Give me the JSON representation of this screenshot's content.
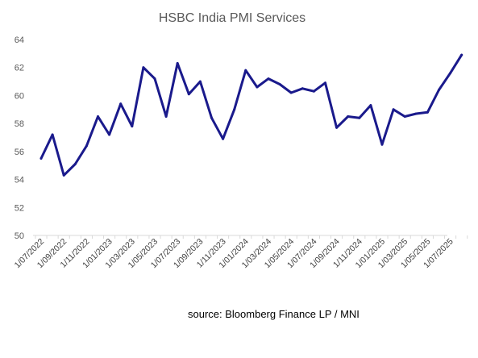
{
  "chart_data": {
    "type": "line",
    "title": "HSBC India PMI Services",
    "xlabel": "",
    "ylabel": "",
    "ylim": [
      50,
      64
    ],
    "yticks": [
      "50",
      "52",
      "54",
      "56",
      "58",
      "60",
      "62",
      "64"
    ],
    "xtick_labels": [
      "1/07/2022",
      "1/09/2022",
      "1/11/2022",
      "1/01/2023",
      "1/03/2023",
      "1/05/2023",
      "1/07/2023",
      "1/09/2023",
      "1/11/2023",
      "1/01/2024",
      "1/03/2024",
      "1/05/2024",
      "1/07/2024",
      "1/09/2024",
      "1/11/2024",
      "1/01/2025",
      "1/03/2025",
      "1/05/2025",
      "1/07/2025"
    ],
    "grid": false,
    "line_color": "#1a1a8c",
    "series": [
      {
        "x": [
          "2022-07",
          "2022-08",
          "2022-09",
          "2022-10",
          "2022-11",
          "2022-12",
          "2023-01",
          "2023-02",
          "2023-03",
          "2023-04",
          "2023-05",
          "2023-06",
          "2023-07",
          "2023-08",
          "2023-09",
          "2023-10",
          "2023-11",
          "2023-12",
          "2024-01",
          "2024-02",
          "2024-03",
          "2024-04",
          "2024-05",
          "2024-06",
          "2024-07",
          "2024-08",
          "2024-09",
          "2024-10",
          "2024-11",
          "2024-12",
          "2025-01",
          "2025-02",
          "2025-03",
          "2025-04",
          "2025-05",
          "2025-06",
          "2025-07",
          "2025-08"
        ],
        "values": [
          55.5,
          57.2,
          54.3,
          55.1,
          56.4,
          58.5,
          57.2,
          59.4,
          57.8,
          62.0,
          61.2,
          58.5,
          62.3,
          60.1,
          61.0,
          58.4,
          56.9,
          59.0,
          61.8,
          60.6,
          61.2,
          60.8,
          60.2,
          60.5,
          60.3,
          60.9,
          57.7,
          58.5,
          58.4,
          59.3,
          56.5,
          59.0,
          58.5,
          58.7,
          58.8,
          60.4,
          61.6,
          62.9
        ]
      }
    ]
  },
  "source_note": "source: Bloomberg Finance LP / MNI"
}
